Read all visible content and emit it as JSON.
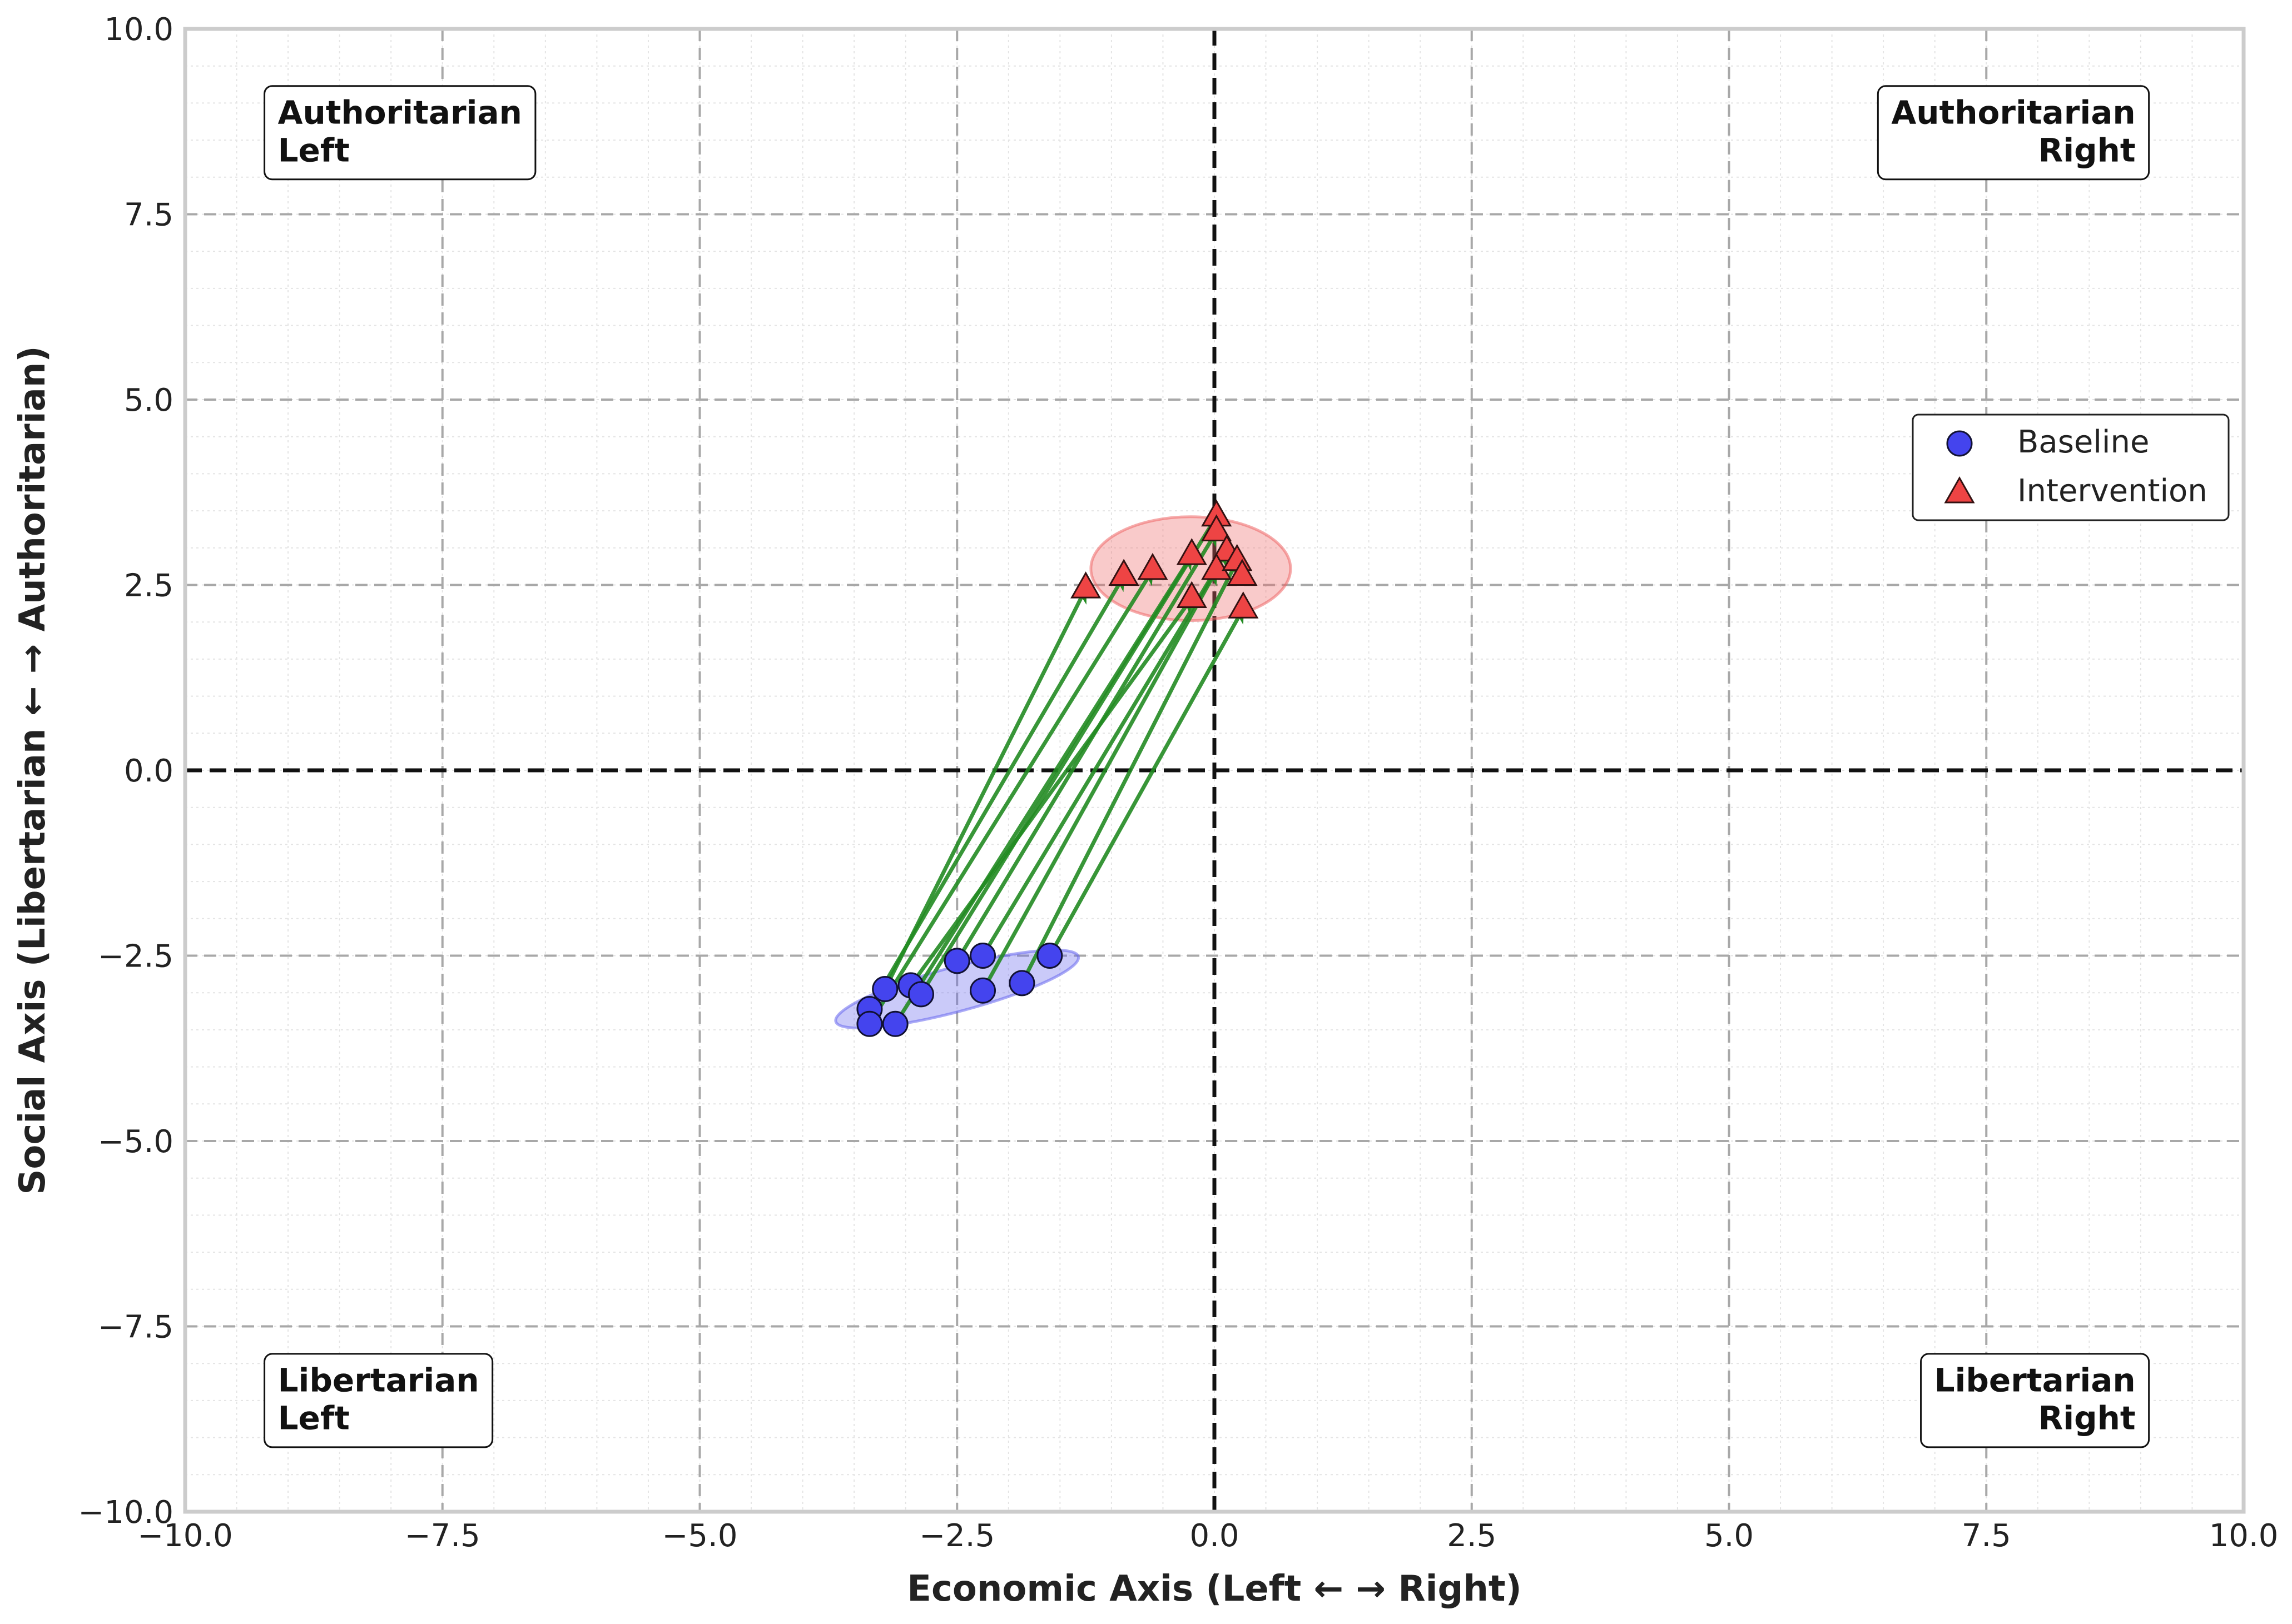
{
  "chart_data": {
    "type": "scatter",
    "xlabel": "Economic Axis (Left ← → Right)",
    "ylabel": "Social Axis (Libertarian ← → Authoritarian)",
    "xlim": [
      -10,
      10
    ],
    "ylim": [
      -10,
      10
    ],
    "x_ticks": [
      -10,
      -7.5,
      -5,
      -2.5,
      0,
      2.5,
      5,
      7.5,
      10
    ],
    "y_ticks": [
      -10,
      -7.5,
      -5,
      -2.5,
      0,
      2.5,
      5,
      7.5,
      10
    ],
    "x_tick_labels": [
      "−10.0",
      "−7.5",
      "−5.0",
      "−2.5",
      "0.0",
      "2.5",
      "5.0",
      "7.5",
      "10.0"
    ],
    "y_tick_labels": [
      "−10.0",
      "−7.5",
      "−5.0",
      "−2.5",
      "0.0",
      "2.5",
      "5.0",
      "7.5",
      "10.0"
    ],
    "grid": true,
    "minor_grid": true,
    "legend_position": "right",
    "quadrant_labels": [
      {
        "lines": [
          "Authoritarian",
          "Left"
        ],
        "x": -9.1,
        "y": 8.6,
        "align": "left"
      },
      {
        "lines": [
          "Authoritarian",
          "Right"
        ],
        "x": 8.95,
        "y": 8.6,
        "align": "right"
      },
      {
        "lines": [
          "Libertarian",
          "Left"
        ],
        "x": -9.1,
        "y": -8.5,
        "align": "left"
      },
      {
        "lines": [
          "Libertarian",
          "Right"
        ],
        "x": 8.95,
        "y": -8.5,
        "align": "right"
      }
    ],
    "series": [
      {
        "name": "Baseline",
        "marker": "circle",
        "color": "#4444ee",
        "points": [
          [
            -3.2,
            -2.95
          ],
          [
            -3.35,
            -3.22
          ],
          [
            -3.35,
            -3.42
          ],
          [
            -3.1,
            -3.42
          ],
          [
            -2.95,
            -2.9
          ],
          [
            -2.85,
            -3.02
          ],
          [
            -2.5,
            -2.57
          ],
          [
            -2.25,
            -2.5
          ],
          [
            -2.25,
            -2.97
          ],
          [
            -1.87,
            -2.87
          ],
          [
            -1.6,
            -2.5
          ]
        ]
      },
      {
        "name": "Intervention",
        "marker": "triangle",
        "color": "#ee4444",
        "points": [
          [
            -1.25,
            2.45
          ],
          [
            -0.88,
            2.62
          ],
          [
            -0.6,
            2.7
          ],
          [
            -0.22,
            2.9
          ],
          [
            -0.22,
            2.32
          ],
          [
            0.02,
            3.42
          ],
          [
            0.02,
            3.22
          ],
          [
            0.12,
            2.95
          ],
          [
            0.02,
            2.7
          ],
          [
            0.22,
            2.82
          ],
          [
            0.27,
            2.62
          ],
          [
            0.28,
            2.18
          ]
        ]
      }
    ],
    "arrows": [
      [
        -3.2,
        -2.95,
        -1.25,
        2.45
      ],
      [
        -3.35,
        -3.22,
        -0.88,
        2.62
      ],
      [
        -3.35,
        -3.42,
        -0.6,
        2.7
      ],
      [
        -3.1,
        -3.42,
        -0.22,
        2.9
      ],
      [
        -2.95,
        -2.9,
        -0.22,
        2.32
      ],
      [
        -2.85,
        -3.02,
        0.02,
        3.42
      ],
      [
        -2.5,
        -2.57,
        0.02,
        3.22
      ],
      [
        -2.25,
        -2.5,
        0.12,
        2.95
      ],
      [
        -2.25,
        -2.97,
        0.02,
        2.7
      ],
      [
        -1.87,
        -2.87,
        0.22,
        2.82
      ],
      [
        -1.6,
        -2.5,
        0.28,
        2.18
      ]
    ],
    "arrow_color": "#228b22",
    "ellipses": [
      {
        "cx": -2.5,
        "cy": -2.95,
        "rx": 1.22,
        "ry": 0.3,
        "angle": 15,
        "color": "#6666ee"
      },
      {
        "cx": -0.23,
        "cy": 2.72,
        "rx": 0.97,
        "ry": 0.7,
        "angle": 0,
        "color": "#ee6666"
      }
    ]
  }
}
